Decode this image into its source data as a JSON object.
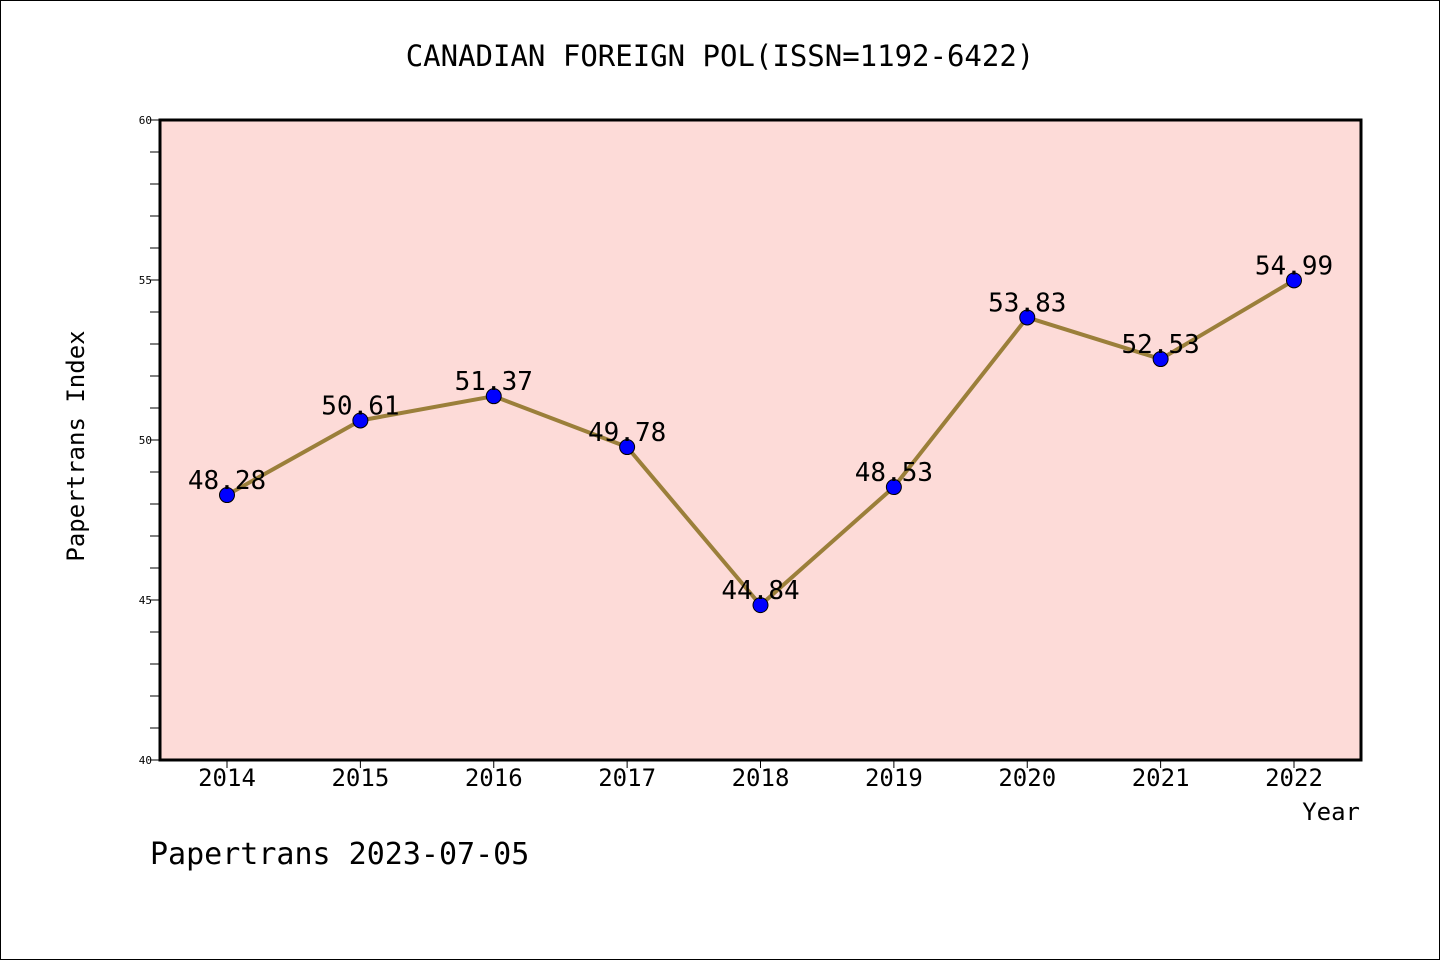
{
  "chart_data": {
    "type": "line",
    "title": "CANADIAN FOREIGN POL(ISSN=1192-6422)",
    "xlabel": "Year",
    "ylabel": "Papertrans Index",
    "x": [
      "2014",
      "2015",
      "2016",
      "2017",
      "2018",
      "2019",
      "2020",
      "2021",
      "2022"
    ],
    "series": [
      {
        "values": [
          48.28,
          50.61,
          51.37,
          49.78,
          44.84,
          48.53,
          53.83,
          52.53,
          54.99
        ],
        "labels": [
          "48.28",
          "50.61",
          "51.37",
          "49.78",
          "44.84",
          "48.53",
          "53.83",
          "52.53",
          "54.99"
        ]
      }
    ],
    "ylim": [
      40,
      60
    ],
    "yticks": [
      "40",
      "45",
      "50",
      "55",
      "60"
    ],
    "grid": false,
    "colors": {
      "plot_background": "#fddbd8",
      "line": "#9b7f3a",
      "marker": "#0000ff"
    }
  },
  "footer": {
    "text": "Papertrans 2023-07-05"
  }
}
